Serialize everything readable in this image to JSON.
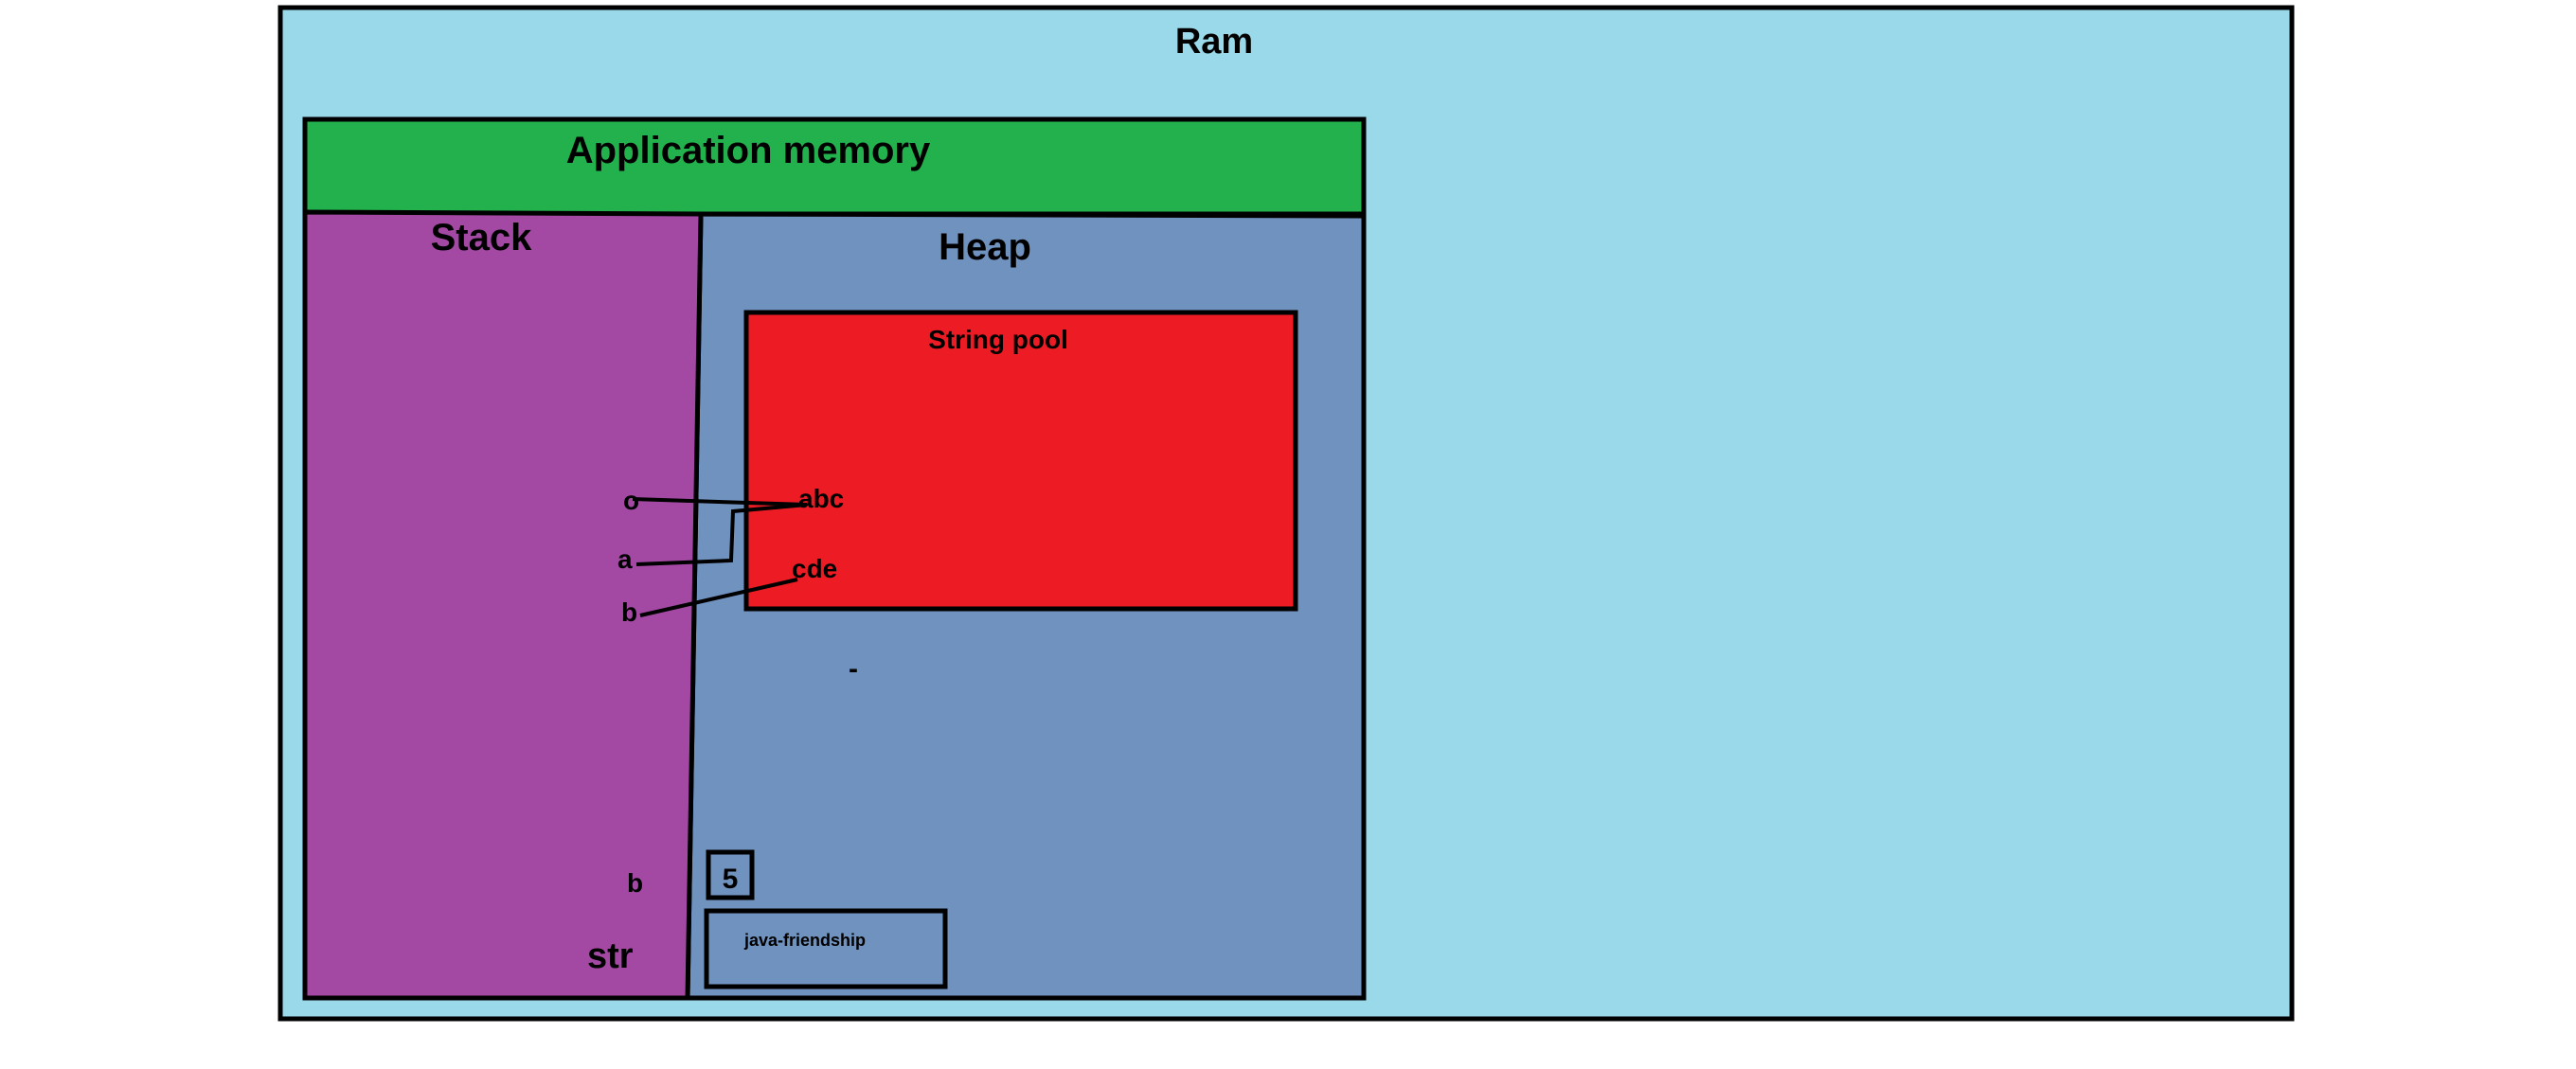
{
  "diagram": {
    "ram": {
      "label": "Ram",
      "color": "#9ad9ea"
    },
    "application_memory": {
      "label": "Application memory",
      "color": "#22b14c"
    },
    "stack": {
      "label": "Stack",
      "color": "#a349a4",
      "variables": {
        "o": "o",
        "a": "a",
        "b_ref": "b",
        "b_prim": "b",
        "str": "str"
      }
    },
    "heap": {
      "label": "Heap",
      "color": "#7092be",
      "dash": "-",
      "int_value": "5",
      "object_value": "java-friendship"
    },
    "string_pool": {
      "label": "String pool",
      "color": "#ed1c24",
      "strings": {
        "abc": "abc",
        "cde": "cde"
      }
    }
  }
}
